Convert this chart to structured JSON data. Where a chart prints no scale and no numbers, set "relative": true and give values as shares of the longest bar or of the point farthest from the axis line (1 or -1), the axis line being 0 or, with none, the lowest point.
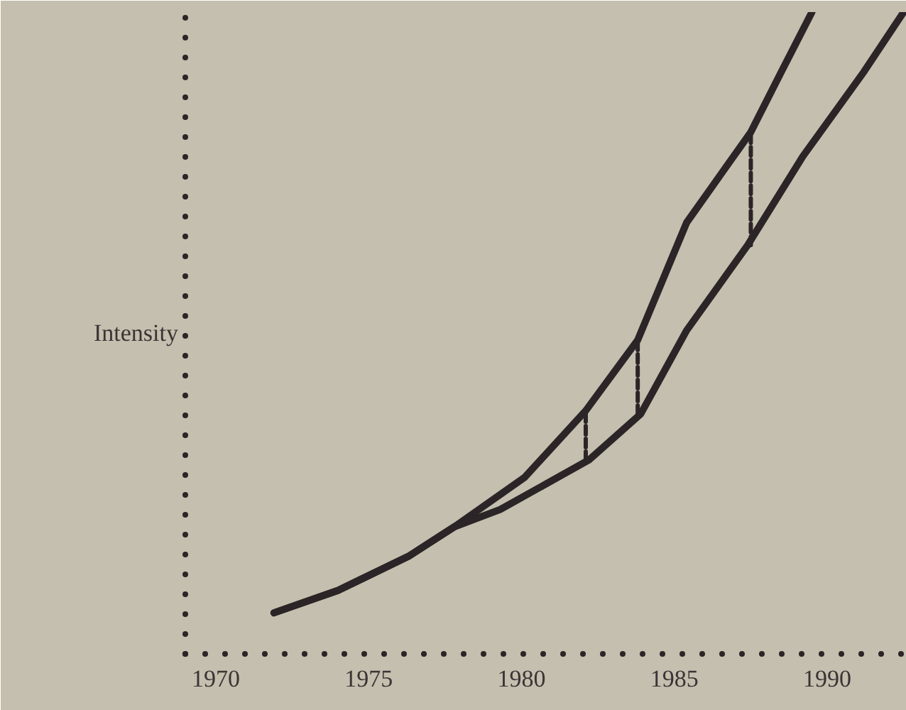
{
  "chart_data": {
    "type": "line",
    "relative": true,
    "ylabel": "Intensity",
    "xlim": [
      1969,
      1992.6
    ],
    "xticks": [
      1970,
      1975,
      1980,
      1985,
      1990
    ],
    "line_style": "solid",
    "series": [
      {
        "color": "#2b2527",
        "x": [
          1971.9,
          1974.0,
          1976.3,
          1977.8,
          1980.1,
          1982.1,
          1983.8,
          1985.4,
          1987.5,
          1988.5,
          1989.5
        ],
        "values": [
          0.064,
          0.099,
          0.152,
          0.198,
          0.275,
          0.379,
          0.489,
          0.672,
          0.813,
          0.907,
          1.0
        ]
      },
      {
        "color": "#2b2527",
        "x": [
          1971.9,
          1974.0,
          1976.3,
          1977.8,
          1979.3,
          1982.2,
          1983.9,
          1985.4,
          1987.4,
          1989.2,
          1991.2,
          1992.5
        ],
        "values": [
          0.064,
          0.099,
          0.152,
          0.198,
          0.225,
          0.302,
          0.374,
          0.504,
          0.637,
          0.775,
          0.907,
          1.0
        ]
      },
      {
        "color": "#2b2527",
        "line_style": "dashed",
        "x": [
          1982.1,
          1982.1
        ],
        "values": [
          0.302,
          0.379
        ]
      },
      {
        "color": "#2b2527",
        "line_style": "dashed",
        "x": [
          1983.8,
          1983.8
        ],
        "values": [
          0.374,
          0.489
        ]
      },
      {
        "color": "#2b2527",
        "line_style": "dashed",
        "x": [
          1987.5,
          1987.5
        ],
        "values": [
          0.637,
          0.813
        ]
      }
    ]
  }
}
